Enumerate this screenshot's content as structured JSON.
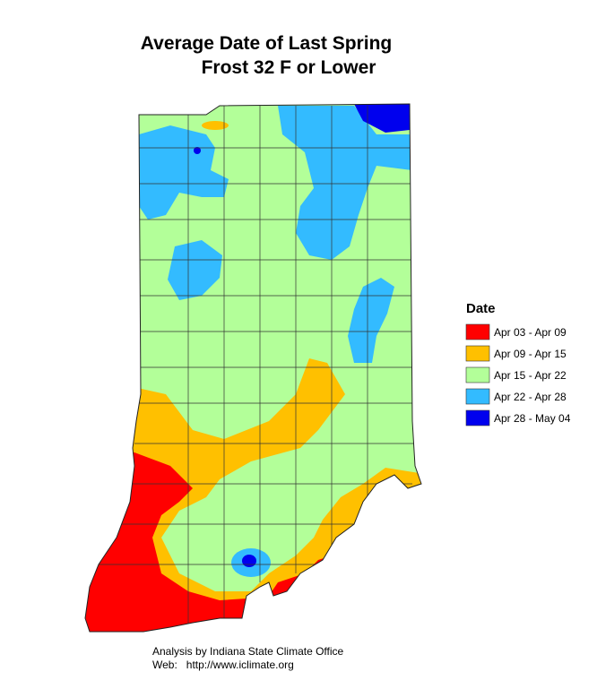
{
  "title": [
    "Average Date of Last Spring",
    "Frost 32 F or Lower"
  ],
  "legend": {
    "title": "Date",
    "items": [
      {
        "label": "Apr 03 - Apr 09",
        "color": "#ff0000"
      },
      {
        "label": "Apr 09 - Apr 15",
        "color": "#ffc000"
      },
      {
        "label": "Apr 15 - Apr 22",
        "color": "#b3ff99"
      },
      {
        "label": "Apr 22 - Apr 28",
        "color": "#33bbff"
      },
      {
        "label": "Apr 28 - May 04",
        "color": "#0000ee"
      }
    ]
  },
  "footer": [
    "Analysis by Indiana State Climate Office",
    "Web:   http://www.iclimate.org"
  ]
}
